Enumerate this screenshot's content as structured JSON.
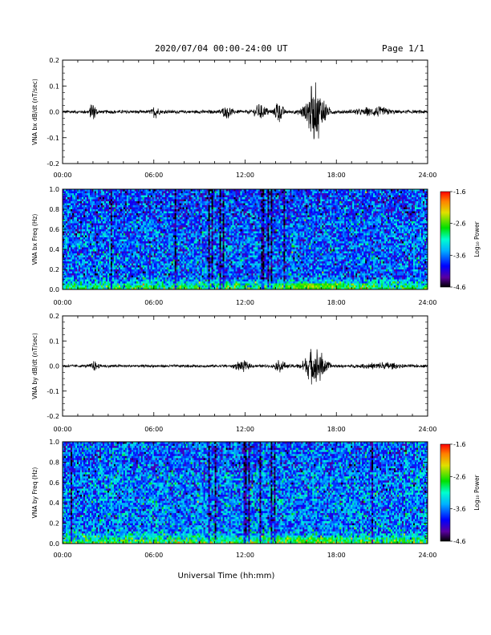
{
  "header": {
    "title": "2020/07/04  00:00-24:00 UT",
    "page": "Page 1/1"
  },
  "chart_data": [
    {
      "type": "line",
      "id": "bx-dbdt",
      "ylabel": "VNA bx dB/dt (nT/sec)",
      "ylim": [
        -0.2,
        0.2
      ],
      "yticks": [
        "0.2",
        "0.1",
        "0.0",
        "-0.1",
        "-0.2"
      ],
      "x_ticks": [
        "00:00",
        "06:00",
        "12:00",
        "18:00",
        "24:00"
      ],
      "baseline": 0.0,
      "noise_level": 0.007,
      "bursts": [
        {
          "t_hours": 2.0,
          "amplitude": 0.045,
          "width_hours": 0.25
        },
        {
          "t_hours": 6.1,
          "amplitude": 0.02,
          "width_hours": 0.3
        },
        {
          "t_hours": 10.8,
          "amplitude": 0.02,
          "width_hours": 0.5
        },
        {
          "t_hours": 13.0,
          "amplitude": 0.025,
          "width_hours": 0.6
        },
        {
          "t_hours": 14.2,
          "amplitude": 0.045,
          "width_hours": 0.4
        },
        {
          "t_hours": 16.6,
          "amplitude": 0.11,
          "width_hours": 0.9
        },
        {
          "t_hours": 20.5,
          "amplitude": 0.015,
          "width_hours": 1.5
        }
      ]
    },
    {
      "type": "heatmap",
      "id": "bx-freq",
      "ylabel": "VNA bx Freq (Hz)",
      "ylim": [
        0.0,
        1.0
      ],
      "yticks": [
        "1.0",
        "0.8",
        "0.6",
        "0.4",
        "0.2",
        "0.0"
      ],
      "x_ticks": [
        "00:00",
        "06:00",
        "12:00",
        "18:00",
        "24:00"
      ],
      "colorbar_label": "Log₁₀ Power",
      "colorbar_ticks": [
        "-1.6",
        "-2.6",
        "-3.6",
        "-4.6"
      ],
      "clim": [
        -4.6,
        -1.6
      ],
      "background_log_power": -3.7,
      "low_freq_enhancement": {
        "t_hours": 16.6,
        "log_power": -2.6,
        "max_freq": 0.06
      }
    },
    {
      "type": "line",
      "id": "by-dbdt",
      "ylabel": "VNA by dB/dt (nT/sec)",
      "ylim": [
        -0.2,
        0.2
      ],
      "yticks": [
        "0.2",
        "0.1",
        "0.0",
        "-0.1",
        "-0.2"
      ],
      "x_ticks": [
        "00:00",
        "06:00",
        "12:00",
        "18:00",
        "24:00"
      ],
      "baseline": 0.0,
      "noise_level": 0.006,
      "bursts": [
        {
          "t_hours": 2.1,
          "amplitude": 0.015,
          "width_hours": 0.3
        },
        {
          "t_hours": 11.8,
          "amplitude": 0.02,
          "width_hours": 0.6
        },
        {
          "t_hours": 14.3,
          "amplitude": 0.02,
          "width_hours": 0.5
        },
        {
          "t_hours": 16.6,
          "amplitude": 0.08,
          "width_hours": 0.9
        },
        {
          "t_hours": 21.0,
          "amplitude": 0.012,
          "width_hours": 1.5
        }
      ]
    },
    {
      "type": "heatmap",
      "id": "by-freq",
      "ylabel": "VNA by Freq (Hz)",
      "ylim": [
        0.0,
        1.0
      ],
      "yticks": [
        "1.0",
        "0.8",
        "0.6",
        "0.4",
        "0.2",
        "0.0"
      ],
      "x_ticks": [
        "00:00",
        "06:00",
        "12:00",
        "18:00",
        "24:00"
      ],
      "colorbar_label": "Log₁₀ Power",
      "colorbar_ticks": [
        "-1.6",
        "-2.6",
        "-3.6",
        "-4.6"
      ],
      "clim": [
        -4.6,
        -1.6
      ],
      "background_log_power": -3.6,
      "low_freq_enhancement": {
        "t_hours": 16.6,
        "log_power": -2.8,
        "max_freq": 0.06
      }
    }
  ],
  "xlabel": "Universal Time (hh:mm)"
}
